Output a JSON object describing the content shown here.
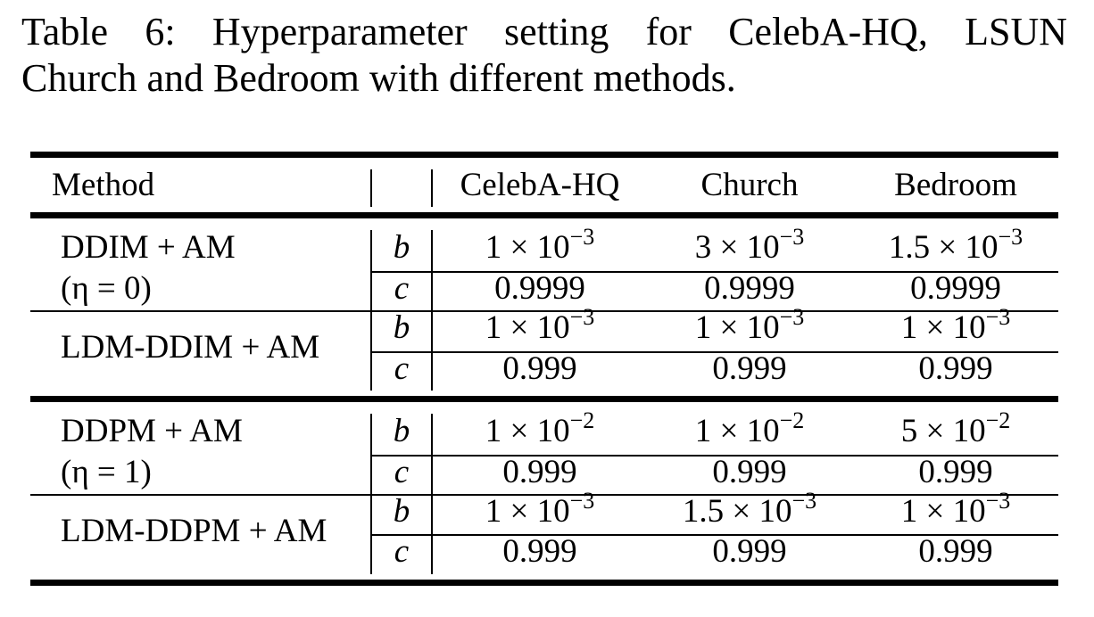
{
  "caption": {
    "line1": "Table 6: Hyperparameter setting for CelebA-HQ, LSUN",
    "line2": "Church and Bedroom with different methods."
  },
  "table": {
    "headers": {
      "method": "Method",
      "celeba": "CelebA-HQ",
      "church": "Church",
      "bedroom": "Bedroom"
    },
    "groups": [
      {
        "method_line1": "DDIM + AM",
        "method_line2": "(η = 0)",
        "rows": [
          {
            "param": "b",
            "celeba": {
              "mant": "1 × 10",
              "exp": "−3"
            },
            "church": {
              "mant": "3 × 10",
              "exp": "−3"
            },
            "bedroom": {
              "mant": "1.5 × 10",
              "exp": "−3"
            }
          },
          {
            "param": "c",
            "celeba": "0.9999",
            "church": "0.9999",
            "bedroom": "0.9999"
          }
        ]
      },
      {
        "method_line1": "LDM-DDIM + AM",
        "rows": [
          {
            "param": "b",
            "celeba": {
              "mant": "1 × 10",
              "exp": "−3"
            },
            "church": {
              "mant": "1 × 10",
              "exp": "−3"
            },
            "bedroom": {
              "mant": "1 × 10",
              "exp": "−3"
            }
          },
          {
            "param": "c",
            "celeba": "0.999",
            "church": "0.999",
            "bedroom": "0.999"
          }
        ]
      },
      {
        "method_line1": "DDPM + AM",
        "method_line2": "(η = 1)",
        "rows": [
          {
            "param": "b",
            "celeba": {
              "mant": "1 × 10",
              "exp": "−2"
            },
            "church": {
              "mant": "1 × 10",
              "exp": "−2"
            },
            "bedroom": {
              "mant": "5 × 10",
              "exp": "−2"
            }
          },
          {
            "param": "c",
            "celeba": "0.999",
            "church": "0.999",
            "bedroom": "0.999"
          }
        ]
      },
      {
        "method_line1": "LDM-DDPM + AM",
        "rows": [
          {
            "param": "b",
            "celeba": {
              "mant": "1 × 10",
              "exp": "−3"
            },
            "church": {
              "mant": "1.5 × 10",
              "exp": "−3"
            },
            "bedroom": {
              "mant": "1 × 10",
              "exp": "−3"
            }
          },
          {
            "param": "c",
            "celeba": "0.999",
            "church": "0.999",
            "bedroom": "0.999"
          }
        ]
      }
    ]
  }
}
